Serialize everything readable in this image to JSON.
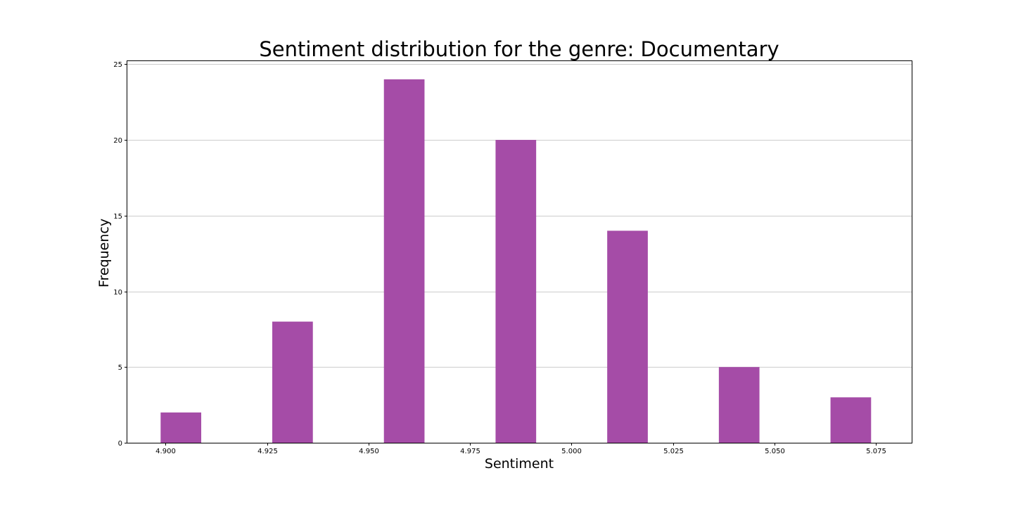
{
  "chart_data": {
    "type": "bar",
    "title": "Sentiment distribution for the genre: Documentary",
    "xlabel": "Sentiment",
    "ylabel": "Frequency",
    "bar_color": "#a54ca7",
    "grid": "y",
    "xlim": [
      4.8906,
      5.0838
    ],
    "ylim": [
      0,
      25.2
    ],
    "x_ticks": [
      "4.900",
      "4.925",
      "4.950",
      "4.975",
      "5.000",
      "5.025",
      "5.050",
      "5.075"
    ],
    "y_ticks": [
      "0",
      "5",
      "10",
      "15",
      "20",
      "25"
    ],
    "bars": [
      {
        "x_start": 4.8988,
        "x_end": 4.9088,
        "value": 2
      },
      {
        "x_start": 4.9263,
        "x_end": 4.9363,
        "value": 8
      },
      {
        "x_start": 4.9538,
        "x_end": 4.9638,
        "value": 24
      },
      {
        "x_start": 4.9813,
        "x_end": 4.9913,
        "value": 20
      },
      {
        "x_start": 5.0088,
        "x_end": 5.0188,
        "value": 14
      },
      {
        "x_start": 5.0363,
        "x_end": 5.0463,
        "value": 5
      },
      {
        "x_start": 5.0638,
        "x_end": 5.0738,
        "value": 3
      }
    ]
  }
}
